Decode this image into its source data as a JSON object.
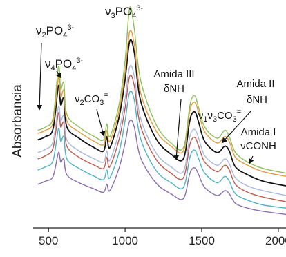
{
  "chart_data": {
    "type": "line",
    "title": "",
    "xlabel": "",
    "ylabel": "Absorbancia",
    "xlim": [
      400,
      2050
    ],
    "xticks": [
      500,
      1000,
      1500,
      2000
    ],
    "xtick_labels": [
      "500",
      "1000",
      "1500",
      "2000"
    ],
    "grid": false,
    "legend": "none",
    "series": [
      {
        "color": "#8fbf5a",
        "x": [
          430,
          480,
          530,
          565,
          580,
          600,
          620,
          700,
          800,
          860,
          880,
          900,
          960,
          1000,
          1030,
          1060,
          1100,
          1200,
          1300,
          1380,
          1420,
          1440,
          1460,
          1480,
          1520,
          1600,
          1650,
          1680,
          1720,
          1800,
          1900,
          2050
        ],
        "y": [
          0.58,
          0.6,
          0.66,
          0.98,
          0.84,
          0.88,
          0.68,
          0.6,
          0.54,
          0.52,
          0.62,
          0.54,
          0.74,
          1.02,
          1.35,
          1.22,
          0.9,
          0.62,
          0.5,
          0.47,
          0.72,
          0.79,
          0.79,
          0.72,
          0.6,
          0.53,
          0.58,
          0.54,
          0.44,
          0.38,
          0.34,
          0.31
        ]
      },
      {
        "color": "#e49a3a",
        "x": [
          430,
          480,
          530,
          565,
          580,
          600,
          620,
          700,
          800,
          860,
          880,
          900,
          960,
          1000,
          1030,
          1060,
          1100,
          1200,
          1300,
          1380,
          1420,
          1440,
          1460,
          1480,
          1520,
          1600,
          1650,
          1680,
          1720,
          1800,
          1900,
          2050
        ],
        "y": [
          0.56,
          0.58,
          0.63,
          0.91,
          0.79,
          0.83,
          0.64,
          0.57,
          0.51,
          0.49,
          0.58,
          0.51,
          0.7,
          0.95,
          1.2,
          1.12,
          0.82,
          0.58,
          0.48,
          0.45,
          0.69,
          0.75,
          0.75,
          0.69,
          0.57,
          0.5,
          0.54,
          0.51,
          0.41,
          0.36,
          0.32,
          0.29
        ]
      },
      {
        "color": "#111111",
        "x": [
          430,
          480,
          530,
          565,
          580,
          600,
          620,
          700,
          800,
          860,
          880,
          900,
          960,
          1000,
          1030,
          1060,
          1100,
          1200,
          1300,
          1380,
          1420,
          1440,
          1460,
          1480,
          1520,
          1600,
          1650,
          1680,
          1720,
          1800,
          1900,
          2050
        ],
        "y": [
          0.52,
          0.54,
          0.59,
          0.86,
          0.74,
          0.78,
          0.6,
          0.53,
          0.47,
          0.45,
          0.54,
          0.47,
          0.66,
          0.9,
          1.14,
          1.07,
          0.77,
          0.53,
          0.43,
          0.4,
          0.63,
          0.69,
          0.69,
          0.63,
          0.51,
          0.44,
          0.48,
          0.45,
          0.35,
          0.3,
          0.26,
          0.23
        ]
      },
      {
        "color": "#a9b8e0",
        "x": [
          430,
          480,
          530,
          565,
          580,
          600,
          620,
          700,
          800,
          860,
          880,
          900,
          960,
          1000,
          1030,
          1060,
          1100,
          1200,
          1300,
          1380,
          1420,
          1440,
          1460,
          1480,
          1520,
          1600,
          1650,
          1680,
          1720,
          1800,
          1900,
          2050
        ],
        "y": [
          0.44,
          0.46,
          0.51,
          0.73,
          0.64,
          0.67,
          0.52,
          0.45,
          0.4,
          0.38,
          0.45,
          0.39,
          0.57,
          0.78,
          0.98,
          0.92,
          0.66,
          0.44,
          0.35,
          0.32,
          0.53,
          0.58,
          0.58,
          0.53,
          0.42,
          0.36,
          0.4,
          0.37,
          0.28,
          0.23,
          0.2,
          0.17
        ]
      },
      {
        "color": "#c0584a",
        "x": [
          430,
          480,
          530,
          565,
          580,
          600,
          620,
          700,
          800,
          860,
          880,
          900,
          960,
          1000,
          1030,
          1060,
          1100,
          1200,
          1300,
          1380,
          1420,
          1440,
          1460,
          1480,
          1520,
          1600,
          1650,
          1680,
          1720,
          1800,
          1900,
          2050
        ],
        "y": [
          0.4,
          0.42,
          0.47,
          0.69,
          0.6,
          0.63,
          0.48,
          0.41,
          0.36,
          0.34,
          0.41,
          0.35,
          0.52,
          0.72,
          0.92,
          0.86,
          0.61,
          0.4,
          0.31,
          0.28,
          0.48,
          0.53,
          0.53,
          0.48,
          0.38,
          0.32,
          0.36,
          0.33,
          0.24,
          0.19,
          0.16,
          0.13
        ]
      },
      {
        "color": "#4bb2c8",
        "x": [
          430,
          480,
          530,
          565,
          580,
          600,
          620,
          700,
          800,
          860,
          880,
          900,
          960,
          1000,
          1030,
          1060,
          1100,
          1200,
          1300,
          1380,
          1420,
          1440,
          1460,
          1480,
          1520,
          1600,
          1650,
          1680,
          1720,
          1800,
          1900,
          2050
        ],
        "y": [
          0.33,
          0.35,
          0.39,
          0.59,
          0.51,
          0.54,
          0.4,
          0.34,
          0.29,
          0.27,
          0.33,
          0.28,
          0.44,
          0.64,
          0.82,
          0.77,
          0.53,
          0.33,
          0.25,
          0.22,
          0.4,
          0.45,
          0.45,
          0.4,
          0.31,
          0.25,
          0.29,
          0.26,
          0.18,
          0.14,
          0.11,
          0.09
        ]
      },
      {
        "color": "#8a6fb0",
        "x": [
          430,
          480,
          530,
          565,
          580,
          600,
          620,
          700,
          800,
          860,
          880,
          900,
          960,
          1000,
          1030,
          1060,
          1100,
          1200,
          1300,
          1380,
          1420,
          1440,
          1460,
          1480,
          1520,
          1600,
          1650,
          1680,
          1720,
          1800,
          1900,
          2050
        ],
        "y": [
          0.24,
          0.26,
          0.29,
          0.44,
          0.38,
          0.4,
          0.3,
          0.25,
          0.21,
          0.19,
          0.24,
          0.2,
          0.34,
          0.5,
          0.64,
          0.6,
          0.41,
          0.25,
          0.18,
          0.15,
          0.3,
          0.34,
          0.34,
          0.3,
          0.22,
          0.17,
          0.2,
          0.18,
          0.12,
          0.09,
          0.07,
          0.05
        ]
      }
    ],
    "annotations": [
      {
        "id": "v2po4",
        "parts": [
          {
            "t": "ν"
          },
          {
            "t": "2",
            "s": "sub"
          },
          {
            "t": "PO"
          },
          {
            "t": "4",
            "s": "sub"
          },
          {
            "t": "3-",
            "s": "sup"
          }
        ]
      },
      {
        "id": "v4po4",
        "parts": [
          {
            "t": "ν"
          },
          {
            "t": "4",
            "s": "sub"
          },
          {
            "t": "PO"
          },
          {
            "t": "4",
            "s": "sub"
          },
          {
            "t": "3-",
            "s": "sup"
          }
        ]
      },
      {
        "id": "v3po4",
        "parts": [
          {
            "t": "ν"
          },
          {
            "t": "3",
            "s": "sub"
          },
          {
            "t": "PO"
          },
          {
            "t": "4",
            "s": "sub"
          },
          {
            "t": "3-",
            "s": "sup"
          }
        ]
      },
      {
        "id": "v2co3",
        "parts": [
          {
            "t": "ν"
          },
          {
            "t": "2",
            "s": "sub"
          },
          {
            "t": "CO"
          },
          {
            "t": "3",
            "s": "sub"
          },
          {
            "t": "=",
            "s": "sup"
          }
        ]
      },
      {
        "id": "amida3a",
        "parts": [
          {
            "t": "Amida III"
          }
        ]
      },
      {
        "id": "amida3b",
        "parts": [
          {
            "t": "δNH"
          }
        ]
      },
      {
        "id": "v1v3co3",
        "parts": [
          {
            "t": "ν"
          },
          {
            "t": "1",
            "s": "sub"
          },
          {
            "t": "ν"
          },
          {
            "t": "3",
            "s": "sub"
          },
          {
            "t": "CO"
          },
          {
            "t": "3",
            "s": "sub"
          },
          {
            "t": "=",
            "s": "sup"
          }
        ]
      },
      {
        "id": "amida2a",
        "parts": [
          {
            "t": "Amida II"
          }
        ]
      },
      {
        "id": "amida2b",
        "parts": [
          {
            "t": "δNH"
          }
        ]
      },
      {
        "id": "amida1a",
        "parts": [
          {
            "t": "Amida I"
          }
        ]
      },
      {
        "id": "amida1b",
        "parts": [
          {
            "t": "νCONH"
          }
        ]
      }
    ]
  }
}
